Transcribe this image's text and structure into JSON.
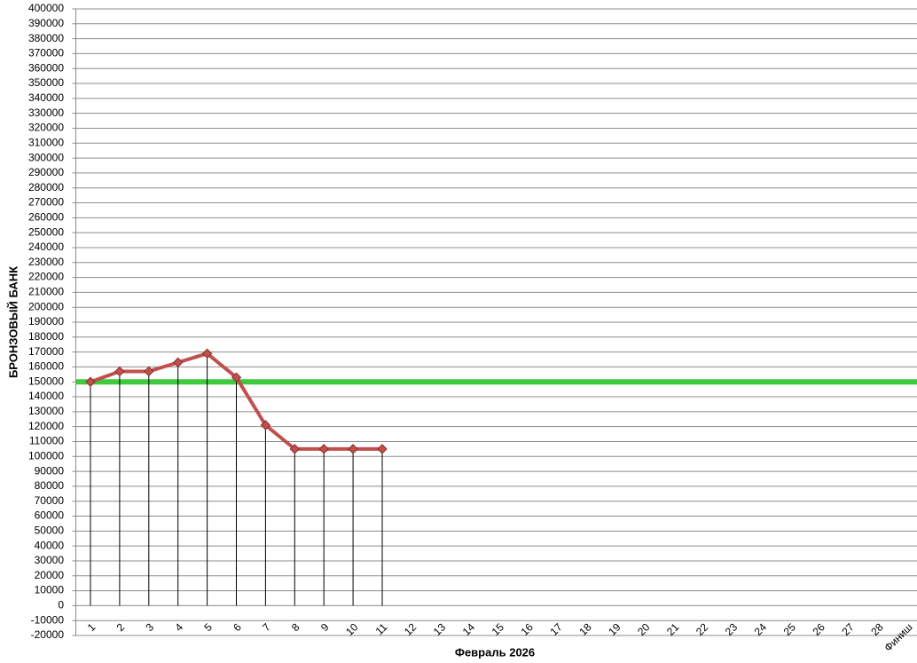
{
  "chart_data": {
    "type": "line",
    "x_label": "Февраль 2026",
    "y_label": "БРОНЗОВЫЙ БАНК",
    "categories": [
      "1",
      "2",
      "3",
      "4",
      "5",
      "6",
      "7",
      "8",
      "9",
      "10",
      "11",
      "12",
      "13",
      "14",
      "15",
      "16",
      "17",
      "18",
      "19",
      "20",
      "21",
      "22",
      "23",
      "24",
      "25",
      "26",
      "27",
      "28",
      "Финиш"
    ],
    "series": [
      {
        "color": "#c0504d",
        "values": [
          150000,
          157000,
          157000,
          163000,
          169000,
          153000,
          121000,
          105000,
          105000,
          105000,
          105000,
          null,
          null,
          null,
          null,
          null,
          null,
          null,
          null,
          null,
          null,
          null,
          null,
          null,
          null,
          null,
          null,
          null,
          null
        ]
      }
    ],
    "reference_line": {
      "value": 150000,
      "color": "#3ec93e"
    },
    "ylim": [
      -20000,
      400000
    ],
    "yticks": [
      -20000,
      -10000,
      0,
      10000,
      20000,
      30000,
      40000,
      50000,
      60000,
      70000,
      80000,
      90000,
      100000,
      110000,
      120000,
      130000,
      140000,
      150000,
      160000,
      170000,
      180000,
      190000,
      200000,
      210000,
      220000,
      230000,
      240000,
      250000,
      260000,
      270000,
      280000,
      290000,
      300000,
      310000,
      320000,
      330000,
      340000,
      350000,
      360000,
      370000,
      380000,
      390000,
      400000
    ],
    "grid": true
  }
}
